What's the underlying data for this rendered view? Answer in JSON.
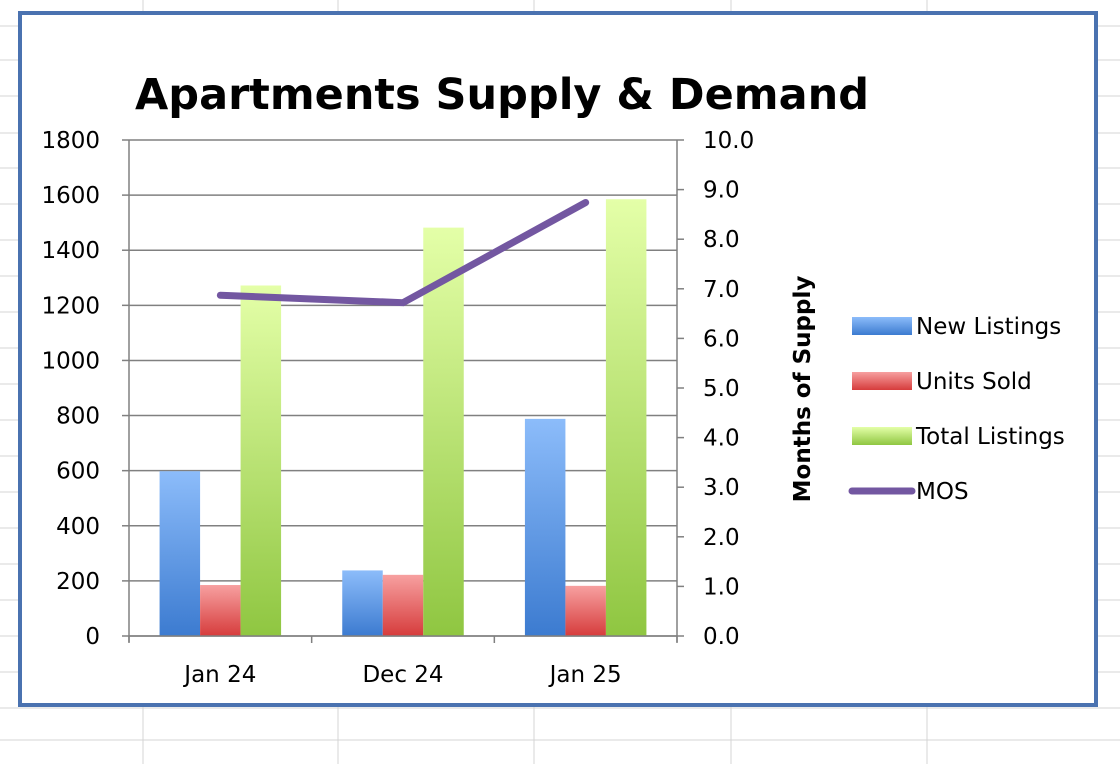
{
  "colors": {
    "new_listings": "#5b9bd5",
    "units_sold": "#e85656",
    "total_listings": "#b5e05a",
    "mos": "#7357a1",
    "frame": "#4a72b0",
    "gridline": "#808080"
  },
  "chart_data": {
    "type": "bar",
    "title": "Apartments Supply & Demand",
    "categories": [
      "Jan 24",
      "Dec 24",
      "Jan 25"
    ],
    "series": [
      {
        "name": "New Listings",
        "type": "bar",
        "axis": "left",
        "values": [
          598,
          238,
          788
        ]
      },
      {
        "name": "Units Sold",
        "type": "bar",
        "axis": "left",
        "values": [
          185,
          222,
          182
        ]
      },
      {
        "name": "Total Listings",
        "type": "bar",
        "axis": "left",
        "values": [
          1272,
          1482,
          1585
        ]
      },
      {
        "name": "MOS",
        "type": "line",
        "axis": "right",
        "values": [
          6.87,
          6.72,
          8.74
        ]
      }
    ],
    "ylim": [
      0,
      1800
    ],
    "yticks": [
      "0",
      "200",
      "400",
      "600",
      "800",
      "1000",
      "1200",
      "1400",
      "1600",
      "1800"
    ],
    "y2lim": [
      0,
      10
    ],
    "y2ticks": [
      "0.0",
      "1.0",
      "2.0",
      "3.0",
      "4.0",
      "5.0",
      "6.0",
      "7.0",
      "8.0",
      "9.0",
      "10.0"
    ],
    "ylabel": "",
    "y2label": "Months of Supply",
    "xlabel": "",
    "grid": true,
    "legend": "right"
  }
}
